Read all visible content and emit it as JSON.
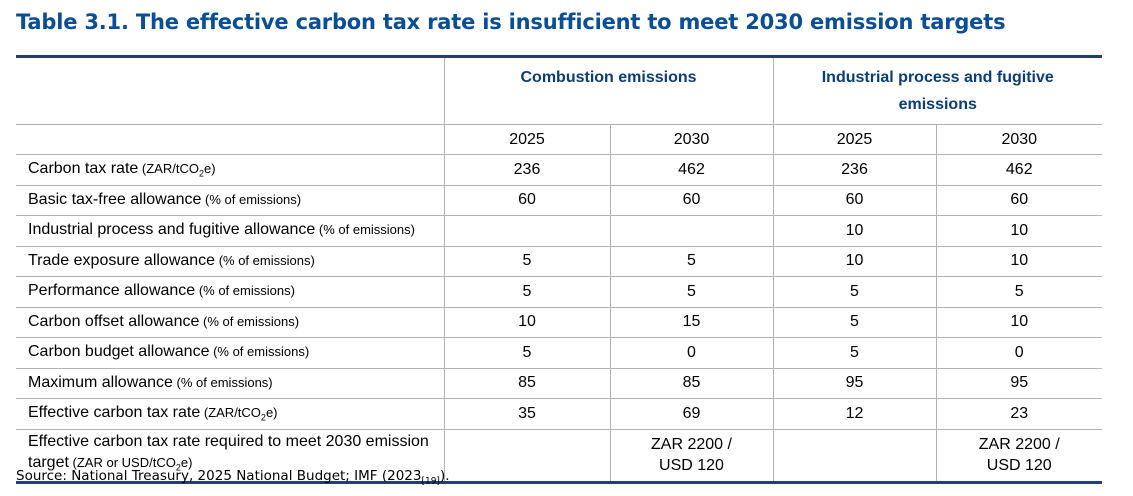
{
  "title": "Table 3.1. The effective carbon tax rate is insufficient to meet 2030 emission targets",
  "groups": {
    "combustion": "Combustion emissions",
    "industrial": "Industrial process and fugitive emissions"
  },
  "years": [
    "2025",
    "2030",
    "2025",
    "2030"
  ],
  "rows": [
    {
      "label": "Carbon tax rate",
      "unit_pre": " (ZAR/tCO",
      "unit_sub": "2",
      "unit_post": "e)",
      "values": [
        "236",
        "462",
        "236",
        "462"
      ]
    },
    {
      "label": "Basic tax-free allowance",
      "unit_pre": " (% of emissions)",
      "unit_sub": "",
      "unit_post": "",
      "values": [
        "60",
        "60",
        "60",
        "60"
      ]
    },
    {
      "label": "Industrial process and fugitive allowance",
      "unit_pre": " (% of emissions)",
      "unit_sub": "",
      "unit_post": "",
      "values": [
        "",
        "",
        "10",
        "10"
      ]
    },
    {
      "label": "Trade exposure allowance",
      "unit_pre": " (% of emissions)",
      "unit_sub": "",
      "unit_post": "",
      "values": [
        "5",
        "5",
        "10",
        "10"
      ]
    },
    {
      "label": "Performance allowance",
      "unit_pre": " (% of emissions)",
      "unit_sub": "",
      "unit_post": "",
      "values": [
        "5",
        "5",
        "5",
        "5"
      ]
    },
    {
      "label": "Carbon offset allowance",
      "unit_pre": " (% of emissions)",
      "unit_sub": "",
      "unit_post": "",
      "values": [
        "10",
        "15",
        "5",
        "10"
      ]
    },
    {
      "label": "Carbon budget allowance",
      "unit_pre": " (% of emissions)",
      "unit_sub": "",
      "unit_post": "",
      "values": [
        "5",
        "0",
        "5",
        "0"
      ]
    },
    {
      "label": "Maximum allowance",
      "unit_pre": " (% of emissions)",
      "unit_sub": "",
      "unit_post": "",
      "values": [
        "85",
        "85",
        "95",
        "95"
      ]
    },
    {
      "label": "Effective carbon tax rate",
      "unit_pre": " (ZAR/tCO",
      "unit_sub": "2",
      "unit_post": "e)",
      "values": [
        "35",
        "69",
        "12",
        "23"
      ]
    }
  ],
  "last_row": {
    "label": "Effective carbon tax rate required to meet 2030 emission target",
    "unit_pre": " (ZAR or USD/tCO",
    "unit_sub": "2",
    "unit_post": "e)",
    "values": [
      {
        "line1": "",
        "line2": ""
      },
      {
        "line1": "ZAR 2200 /",
        "line2": "USD 120"
      },
      {
        "line1": "",
        "line2": ""
      },
      {
        "line1": "ZAR 2200 /",
        "line2": "USD 120"
      }
    ]
  },
  "source": {
    "text": "Source: National Treasury, 2025 National Budget; IMF (2023",
    "ref": "[19]",
    "end": ")."
  }
}
